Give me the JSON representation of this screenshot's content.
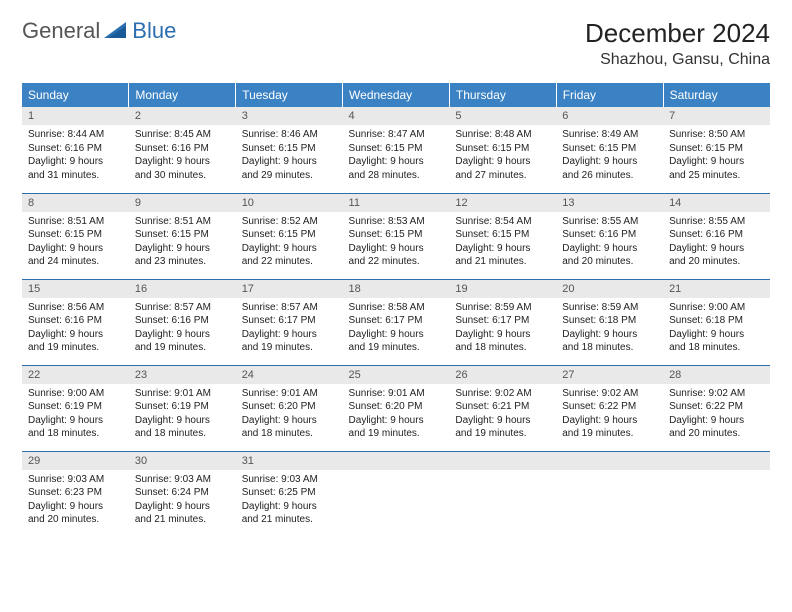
{
  "logo": {
    "general": "General",
    "blue": "Blue"
  },
  "header": {
    "title": "December 2024",
    "location": "Shazhou, Gansu, China"
  },
  "colors": {
    "header_bg": "#3a82c4",
    "header_text": "#ffffff",
    "daynum_bg": "#e9e9e9",
    "border": "#2c6fb0",
    "text": "#222222",
    "logo_gray": "#555555",
    "logo_blue": "#2c6fb0",
    "page_bg": "#ffffff"
  },
  "weekdays": [
    "Sunday",
    "Monday",
    "Tuesday",
    "Wednesday",
    "Thursday",
    "Friday",
    "Saturday"
  ],
  "days": {
    "1": {
      "sr": "Sunrise: 8:44 AM",
      "ss": "Sunset: 6:16 PM",
      "d1": "Daylight: 9 hours",
      "d2": "and 31 minutes."
    },
    "2": {
      "sr": "Sunrise: 8:45 AM",
      "ss": "Sunset: 6:16 PM",
      "d1": "Daylight: 9 hours",
      "d2": "and 30 minutes."
    },
    "3": {
      "sr": "Sunrise: 8:46 AM",
      "ss": "Sunset: 6:15 PM",
      "d1": "Daylight: 9 hours",
      "d2": "and 29 minutes."
    },
    "4": {
      "sr": "Sunrise: 8:47 AM",
      "ss": "Sunset: 6:15 PM",
      "d1": "Daylight: 9 hours",
      "d2": "and 28 minutes."
    },
    "5": {
      "sr": "Sunrise: 8:48 AM",
      "ss": "Sunset: 6:15 PM",
      "d1": "Daylight: 9 hours",
      "d2": "and 27 minutes."
    },
    "6": {
      "sr": "Sunrise: 8:49 AM",
      "ss": "Sunset: 6:15 PM",
      "d1": "Daylight: 9 hours",
      "d2": "and 26 minutes."
    },
    "7": {
      "sr": "Sunrise: 8:50 AM",
      "ss": "Sunset: 6:15 PM",
      "d1": "Daylight: 9 hours",
      "d2": "and 25 minutes."
    },
    "8": {
      "sr": "Sunrise: 8:51 AM",
      "ss": "Sunset: 6:15 PM",
      "d1": "Daylight: 9 hours",
      "d2": "and 24 minutes."
    },
    "9": {
      "sr": "Sunrise: 8:51 AM",
      "ss": "Sunset: 6:15 PM",
      "d1": "Daylight: 9 hours",
      "d2": "and 23 minutes."
    },
    "10": {
      "sr": "Sunrise: 8:52 AM",
      "ss": "Sunset: 6:15 PM",
      "d1": "Daylight: 9 hours",
      "d2": "and 22 minutes."
    },
    "11": {
      "sr": "Sunrise: 8:53 AM",
      "ss": "Sunset: 6:15 PM",
      "d1": "Daylight: 9 hours",
      "d2": "and 22 minutes."
    },
    "12": {
      "sr": "Sunrise: 8:54 AM",
      "ss": "Sunset: 6:15 PM",
      "d1": "Daylight: 9 hours",
      "d2": "and 21 minutes."
    },
    "13": {
      "sr": "Sunrise: 8:55 AM",
      "ss": "Sunset: 6:16 PM",
      "d1": "Daylight: 9 hours",
      "d2": "and 20 minutes."
    },
    "14": {
      "sr": "Sunrise: 8:55 AM",
      "ss": "Sunset: 6:16 PM",
      "d1": "Daylight: 9 hours",
      "d2": "and 20 minutes."
    },
    "15": {
      "sr": "Sunrise: 8:56 AM",
      "ss": "Sunset: 6:16 PM",
      "d1": "Daylight: 9 hours",
      "d2": "and 19 minutes."
    },
    "16": {
      "sr": "Sunrise: 8:57 AM",
      "ss": "Sunset: 6:16 PM",
      "d1": "Daylight: 9 hours",
      "d2": "and 19 minutes."
    },
    "17": {
      "sr": "Sunrise: 8:57 AM",
      "ss": "Sunset: 6:17 PM",
      "d1": "Daylight: 9 hours",
      "d2": "and 19 minutes."
    },
    "18": {
      "sr": "Sunrise: 8:58 AM",
      "ss": "Sunset: 6:17 PM",
      "d1": "Daylight: 9 hours",
      "d2": "and 19 minutes."
    },
    "19": {
      "sr": "Sunrise: 8:59 AM",
      "ss": "Sunset: 6:17 PM",
      "d1": "Daylight: 9 hours",
      "d2": "and 18 minutes."
    },
    "20": {
      "sr": "Sunrise: 8:59 AM",
      "ss": "Sunset: 6:18 PM",
      "d1": "Daylight: 9 hours",
      "d2": "and 18 minutes."
    },
    "21": {
      "sr": "Sunrise: 9:00 AM",
      "ss": "Sunset: 6:18 PM",
      "d1": "Daylight: 9 hours",
      "d2": "and 18 minutes."
    },
    "22": {
      "sr": "Sunrise: 9:00 AM",
      "ss": "Sunset: 6:19 PM",
      "d1": "Daylight: 9 hours",
      "d2": "and 18 minutes."
    },
    "23": {
      "sr": "Sunrise: 9:01 AM",
      "ss": "Sunset: 6:19 PM",
      "d1": "Daylight: 9 hours",
      "d2": "and 18 minutes."
    },
    "24": {
      "sr": "Sunrise: 9:01 AM",
      "ss": "Sunset: 6:20 PM",
      "d1": "Daylight: 9 hours",
      "d2": "and 18 minutes."
    },
    "25": {
      "sr": "Sunrise: 9:01 AM",
      "ss": "Sunset: 6:20 PM",
      "d1": "Daylight: 9 hours",
      "d2": "and 19 minutes."
    },
    "26": {
      "sr": "Sunrise: 9:02 AM",
      "ss": "Sunset: 6:21 PM",
      "d1": "Daylight: 9 hours",
      "d2": "and 19 minutes."
    },
    "27": {
      "sr": "Sunrise: 9:02 AM",
      "ss": "Sunset: 6:22 PM",
      "d1": "Daylight: 9 hours",
      "d2": "and 19 minutes."
    },
    "28": {
      "sr": "Sunrise: 9:02 AM",
      "ss": "Sunset: 6:22 PM",
      "d1": "Daylight: 9 hours",
      "d2": "and 20 minutes."
    },
    "29": {
      "sr": "Sunrise: 9:03 AM",
      "ss": "Sunset: 6:23 PM",
      "d1": "Daylight: 9 hours",
      "d2": "and 20 minutes."
    },
    "30": {
      "sr": "Sunrise: 9:03 AM",
      "ss": "Sunset: 6:24 PM",
      "d1": "Daylight: 9 hours",
      "d2": "and 21 minutes."
    },
    "31": {
      "sr": "Sunrise: 9:03 AM",
      "ss": "Sunset: 6:25 PM",
      "d1": "Daylight: 9 hours",
      "d2": "and 21 minutes."
    }
  },
  "layout": {
    "start_weekday": 0,
    "num_days": 31,
    "rows": 5,
    "cols": 7
  }
}
